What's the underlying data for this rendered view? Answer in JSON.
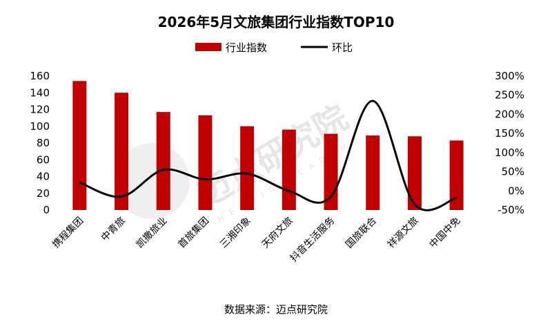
{
  "chart_data": {
    "type": "bar",
    "title": "2026年5月文旅集团行业指数TOP10",
    "categories": [
      "携程集团",
      "中青旅",
      "凯撒旅业",
      "首旅集团",
      "三湘印象",
      "天府文旅",
      "抖音生活服务",
      "国旅联合",
      "祥源文旅",
      "中国中免"
    ],
    "series": [
      {
        "name": "行业指数",
        "type": "bar",
        "axis": "left",
        "color": "#c00000",
        "values": [
          154,
          140,
          117,
          113,
          100,
          96,
          91,
          89,
          88,
          83
        ]
      },
      {
        "name": "环比",
        "type": "line",
        "axis": "right",
        "color": "#000000",
        "values": [
          0.22,
          -0.15,
          0.55,
          0.3,
          0.45,
          0.0,
          -0.15,
          2.35,
          -0.35,
          -0.18
        ]
      }
    ],
    "left_axis": {
      "min": 0,
      "max": 160,
      "step": 20,
      "ticks": [
        "0",
        "20",
        "40",
        "60",
        "80",
        "100",
        "120",
        "140",
        "160"
      ]
    },
    "right_axis": {
      "min": -0.5,
      "max": 3.0,
      "step": 0.5,
      "ticks": [
        "-50%",
        "0%",
        "50%",
        "100%",
        "150%",
        "200%",
        "250%",
        "300%"
      ]
    },
    "legend_position": "top-center",
    "grid": false
  },
  "source": "数据来源：迈点研究院",
  "watermark": {
    "text": "迈点研究院",
    "subtext": "MEADIN ACADEMY"
  }
}
